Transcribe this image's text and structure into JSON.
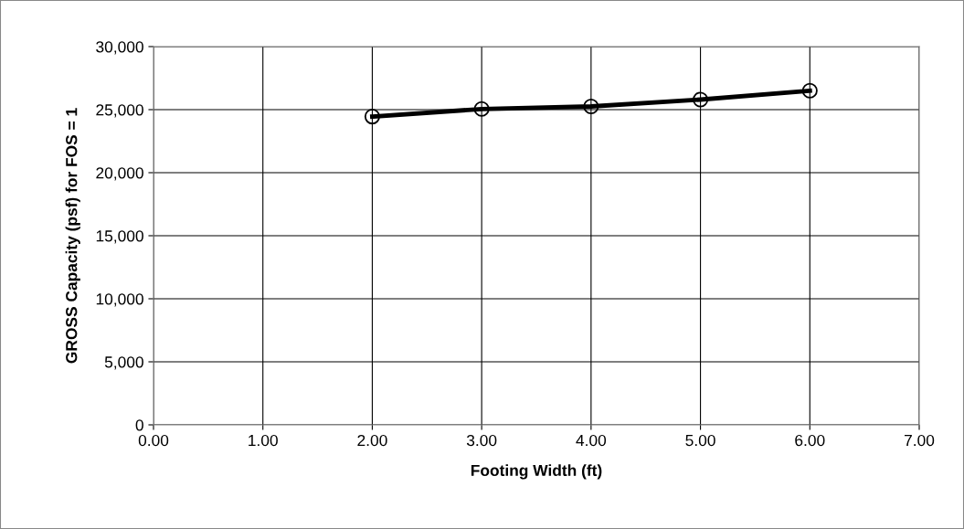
{
  "chart_data": {
    "type": "line",
    "xlabel": "Footing Width (ft)",
    "ylabel": "GROSS Capacity (psf) for FOS = 1",
    "series": [
      {
        "color": "#000000",
        "x": [
          2,
          3,
          4,
          5,
          6
        ],
        "values": [
          24450,
          25050,
          25250,
          25800,
          26500
        ]
      }
    ],
    "xlim": [
      0,
      7
    ],
    "xticks": [
      {
        "value": 0,
        "label": "0.00"
      },
      {
        "value": 1,
        "label": "1.00"
      },
      {
        "value": 2,
        "label": "2.00"
      },
      {
        "value": 3,
        "label": "3.00"
      },
      {
        "value": 4,
        "label": "4.00"
      },
      {
        "value": 5,
        "label": "5.00"
      },
      {
        "value": 6,
        "label": "6.00"
      },
      {
        "value": 7,
        "label": "7.00"
      }
    ],
    "ylim": [
      0,
      30000
    ],
    "yticks": [
      0,
      {
        "value": 5000,
        "label": "5,000"
      },
      {
        "value": 10000,
        "label": "10,000"
      },
      {
        "value": 15000,
        "label": "15,000"
      },
      {
        "value": 20000,
        "label": "20,000"
      },
      {
        "value": 25000,
        "label": "25,000"
      },
      {
        "value": 30000,
        "label": "30,000"
      }
    ],
    "grid": true,
    "marker": "circle",
    "line_style": "solid",
    "legend": false
  }
}
